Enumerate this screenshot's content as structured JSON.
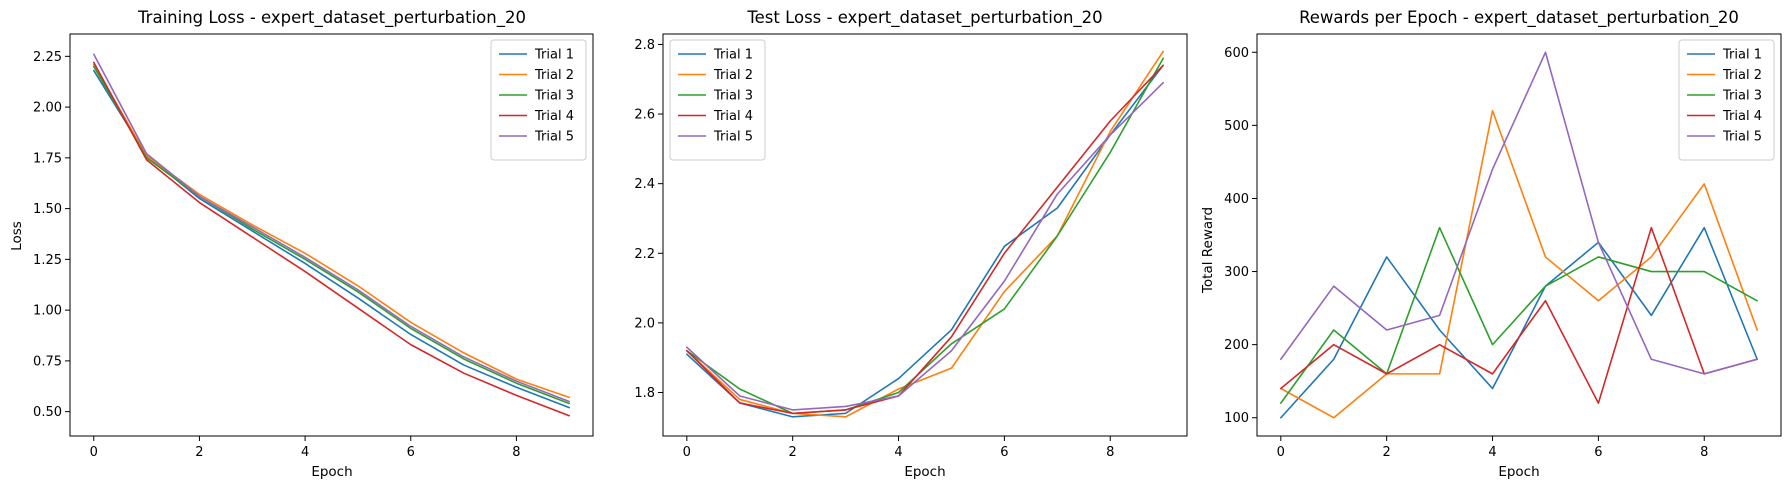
{
  "chart_data": [
    {
      "type": "line",
      "title": "Training Loss - expert_dataset_perturbation_20",
      "xlabel": "Epoch",
      "ylabel": "Loss",
      "xlim": [
        -0.45,
        9.45
      ],
      "ylim": [
        0.38,
        2.36
      ],
      "xticks": [
        0,
        2,
        4,
        6,
        8
      ],
      "xtick_labels": [
        "0",
        "2",
        "4",
        "6",
        "8"
      ],
      "yticks": [
        0.5,
        0.75,
        1.0,
        1.25,
        1.5,
        1.75,
        2.0,
        2.25
      ],
      "ytick_labels": [
        "0.50",
        "0.75",
        "1.00",
        "1.25",
        "1.50",
        "1.75",
        "2.00",
        "2.25"
      ],
      "legend_position": "top-right",
      "x": [
        0,
        1,
        2,
        3,
        4,
        5,
        6,
        7,
        8,
        9
      ],
      "series": [
        {
          "name": "Trial 1",
          "color": "#1f77b4",
          "values": [
            2.18,
            1.76,
            1.55,
            1.39,
            1.23,
            1.06,
            0.88,
            0.73,
            0.62,
            0.52
          ]
        },
        {
          "name": "Trial 2",
          "color": "#ff7f0e",
          "values": [
            2.21,
            1.76,
            1.57,
            1.42,
            1.28,
            1.12,
            0.94,
            0.79,
            0.66,
            0.57
          ]
        },
        {
          "name": "Trial 3",
          "color": "#2ca02c",
          "values": [
            2.2,
            1.75,
            1.56,
            1.4,
            1.25,
            1.09,
            0.91,
            0.76,
            0.64,
            0.54
          ]
        },
        {
          "name": "Trial 4",
          "color": "#d62728",
          "values": [
            2.22,
            1.74,
            1.53,
            1.36,
            1.19,
            1.01,
            0.83,
            0.69,
            0.58,
            0.48
          ]
        },
        {
          "name": "Trial 5",
          "color": "#9467bd",
          "values": [
            2.26,
            1.77,
            1.56,
            1.41,
            1.26,
            1.1,
            0.92,
            0.77,
            0.65,
            0.55
          ]
        }
      ]
    },
    {
      "type": "line",
      "title": "Test Loss - expert_dataset_perturbation_20",
      "xlabel": "Epoch",
      "ylabel": "",
      "xlim": [
        -0.45,
        9.45
      ],
      "ylim": [
        1.675,
        2.83
      ],
      "xticks": [
        0,
        2,
        4,
        6,
        8
      ],
      "xtick_labels": [
        "0",
        "2",
        "4",
        "6",
        "8"
      ],
      "yticks": [
        1.8,
        2.0,
        2.2,
        2.4,
        2.6,
        2.8
      ],
      "ytick_labels": [
        "1.8",
        "2.0",
        "2.2",
        "2.4",
        "2.6",
        "2.8"
      ],
      "legend_position": "top-left",
      "x": [
        0,
        1,
        2,
        3,
        4,
        5,
        6,
        7,
        8,
        9
      ],
      "series": [
        {
          "name": "Trial 1",
          "color": "#1f77b4",
          "values": [
            1.91,
            1.77,
            1.73,
            1.74,
            1.84,
            1.98,
            2.22,
            2.33,
            2.54,
            2.74
          ]
        },
        {
          "name": "Trial 2",
          "color": "#ff7f0e",
          "values": [
            1.92,
            1.78,
            1.74,
            1.73,
            1.81,
            1.87,
            2.09,
            2.25,
            2.55,
            2.78
          ]
        },
        {
          "name": "Trial 3",
          "color": "#2ca02c",
          "values": [
            1.92,
            1.81,
            1.74,
            1.75,
            1.8,
            1.94,
            2.04,
            2.25,
            2.49,
            2.76
          ]
        },
        {
          "name": "Trial 4",
          "color": "#d62728",
          "values": [
            1.92,
            1.77,
            1.74,
            1.75,
            1.79,
            1.96,
            2.2,
            2.39,
            2.58,
            2.74
          ]
        },
        {
          "name": "Trial 5",
          "color": "#9467bd",
          "values": [
            1.93,
            1.79,
            1.75,
            1.76,
            1.79,
            1.92,
            2.12,
            2.37,
            2.54,
            2.69
          ]
        }
      ]
    },
    {
      "type": "line",
      "title": "Rewards per Epoch - expert_dataset_perturbation_20",
      "xlabel": "Epoch",
      "ylabel": "Total Reward",
      "xlim": [
        -0.45,
        9.45
      ],
      "ylim": [
        75,
        625
      ],
      "xticks": [
        0,
        2,
        4,
        6,
        8
      ],
      "xtick_labels": [
        "0",
        "2",
        "4",
        "6",
        "8"
      ],
      "yticks": [
        100,
        200,
        300,
        400,
        500,
        600
      ],
      "ytick_labels": [
        "100",
        "200",
        "300",
        "400",
        "500",
        "600"
      ],
      "legend_position": "top-right",
      "x": [
        0,
        1,
        2,
        3,
        4,
        5,
        6,
        7,
        8,
        9
      ],
      "series": [
        {
          "name": "Trial 1",
          "color": "#1f77b4",
          "values": [
            100,
            180,
            320,
            220,
            140,
            280,
            340,
            240,
            360,
            180
          ]
        },
        {
          "name": "Trial 2",
          "color": "#ff7f0e",
          "values": [
            140,
            100,
            160,
            160,
            520,
            320,
            260,
            320,
            420,
            220
          ]
        },
        {
          "name": "Trial 3",
          "color": "#2ca02c",
          "values": [
            120,
            220,
            160,
            360,
            200,
            280,
            320,
            300,
            300,
            260
          ]
        },
        {
          "name": "Trial 4",
          "color": "#d62728",
          "values": [
            140,
            200,
            160,
            200,
            160,
            260,
            120,
            360,
            160,
            180
          ]
        },
        {
          "name": "Trial 5",
          "color": "#9467bd",
          "values": [
            180,
            280,
            220,
            240,
            440,
            600,
            340,
            180,
            160,
            180
          ]
        }
      ]
    }
  ]
}
